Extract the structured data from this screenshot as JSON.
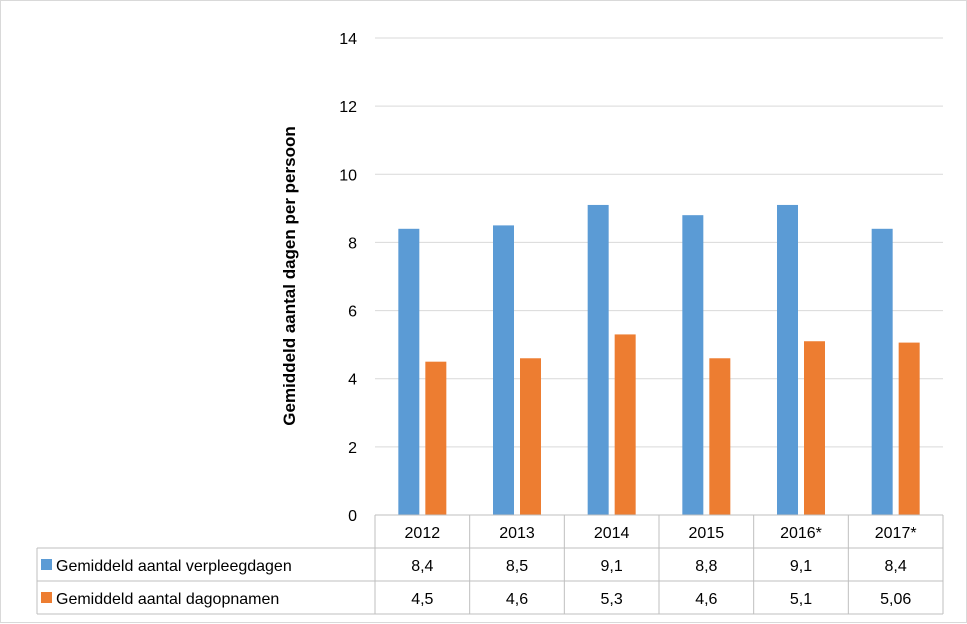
{
  "chart_data": {
    "type": "bar",
    "ylabel": "Gemiddeld aantal dagen per persoon",
    "xlabel": "",
    "ylim": [
      0,
      14
    ],
    "yticks": [
      0,
      2,
      4,
      6,
      8,
      10,
      12,
      14
    ],
    "grid": true,
    "legend": "data-table",
    "categories": [
      "2012",
      "2013",
      "2014",
      "2015",
      "2016*",
      "2017*"
    ],
    "series": [
      {
        "name": "Gemiddeld aantal verpleegdagen",
        "color": "#5B9BD5",
        "values": [
          8.4,
          8.5,
          9.1,
          8.8,
          9.1,
          8.4
        ],
        "labels": [
          "8,4",
          "8,5",
          "9,1",
          "8,8",
          "9,1",
          "8,4"
        ]
      },
      {
        "name": "Gemiddeld aantal dagopnamen",
        "color": "#ED7D31",
        "values": [
          4.5,
          4.6,
          5.3,
          4.6,
          5.1,
          5.06
        ],
        "labels": [
          "4,5",
          "4,6",
          "5,3",
          "4,6",
          "5,1",
          "5,06"
        ]
      }
    ]
  }
}
